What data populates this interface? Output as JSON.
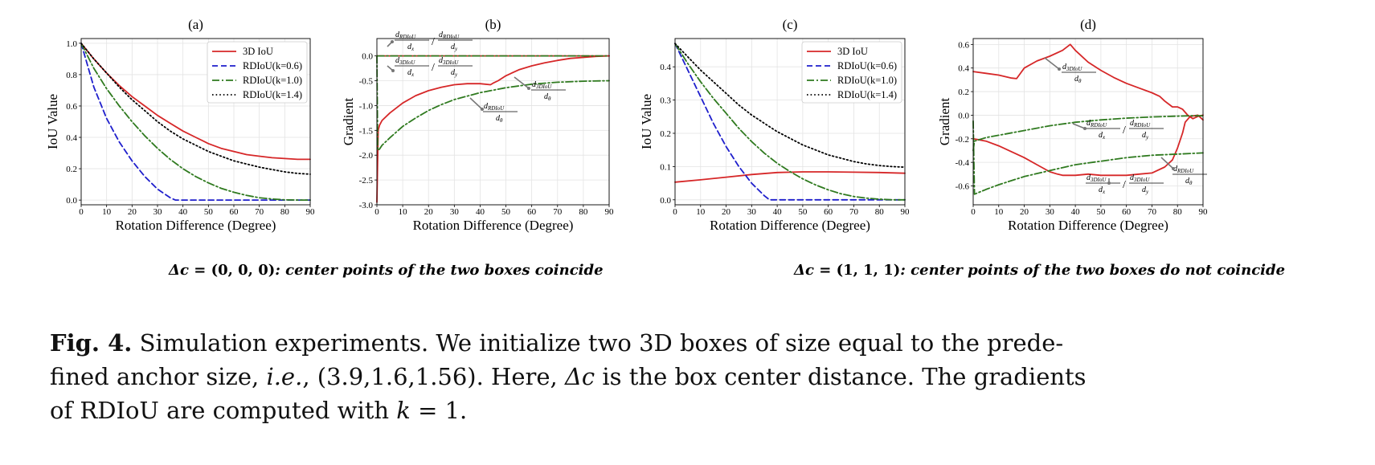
{
  "panels": [
    {
      "id": "a",
      "title": "(a)",
      "chart_data": {
        "type": "line",
        "title": "(a)",
        "xlabel": "Rotation Difference (Degree)",
        "ylabel": "IoU Value",
        "xlim": [
          0,
          90
        ],
        "ylim": [
          -0.03,
          1.03
        ],
        "xticks": [
          "0",
          "10",
          "20",
          "30",
          "40",
          "50",
          "60",
          "70",
          "80",
          "90"
        ],
        "yticks": [
          "0.0",
          "0.2",
          "0.4",
          "0.6",
          "0.8",
          "1.0"
        ],
        "ytick_values": [
          0,
          0.2,
          0.4,
          0.6,
          0.8,
          1.0
        ],
        "grid": true,
        "legend_position": "top-right",
        "series": [
          {
            "name": "3D IoU",
            "color": "#d62728",
            "style": "solid",
            "x": [
              0,
              5,
              10,
              15,
              20,
              25,
              30,
              35,
              40,
              45,
              50,
              55,
              60,
              65,
              70,
              75,
              80,
              85,
              90
            ],
            "y": [
              1.0,
              0.9,
              0.81,
              0.73,
              0.66,
              0.6,
              0.54,
              0.49,
              0.44,
              0.4,
              0.36,
              0.33,
              0.31,
              0.29,
              0.28,
              0.27,
              0.265,
              0.26,
              0.26
            ]
          },
          {
            "name": "RDIoU(k=0.6)",
            "color": "#1f1fcc",
            "style": "dashed",
            "x": [
              0,
              5,
              10,
              15,
              20,
              25,
              30,
              35,
              37,
              40,
              50,
              60,
              70,
              80,
              90
            ],
            "y": [
              1.0,
              0.72,
              0.52,
              0.37,
              0.25,
              0.15,
              0.07,
              0.015,
              0.0,
              0.0,
              0.0,
              0.0,
              0.0,
              0.0,
              0.0
            ]
          },
          {
            "name": "RDIoU(k=1.0)",
            "color": "#2f7a1f",
            "style": "dashdot",
            "x": [
              0,
              5,
              10,
              15,
              20,
              25,
              30,
              35,
              40,
              45,
              50,
              55,
              60,
              65,
              70,
              75,
              80,
              85,
              90
            ],
            "y": [
              1.0,
              0.84,
              0.71,
              0.6,
              0.5,
              0.41,
              0.33,
              0.26,
              0.2,
              0.15,
              0.11,
              0.075,
              0.05,
              0.03,
              0.015,
              0.007,
              0.002,
              0.0,
              0.0
            ]
          },
          {
            "name": "RDIoU(k=1.4)",
            "color": "#000000",
            "style": "dotted",
            "x": [
              0,
              5,
              10,
              15,
              20,
              25,
              30,
              35,
              40,
              45,
              50,
              55,
              60,
              65,
              70,
              75,
              80,
              85,
              90
            ],
            "y": [
              1.0,
              0.9,
              0.81,
              0.72,
              0.64,
              0.57,
              0.5,
              0.44,
              0.39,
              0.35,
              0.31,
              0.28,
              0.25,
              0.23,
              0.21,
              0.195,
              0.18,
              0.17,
              0.165
            ]
          }
        ]
      }
    },
    {
      "id": "b",
      "title": "(b)",
      "chart_data": {
        "type": "line",
        "title": "(b)",
        "xlabel": "Rotation Difference (Degree)",
        "ylabel": "Gradient",
        "xlim": [
          0,
          90
        ],
        "ylim": [
          -3.0,
          0.35
        ],
        "xticks": [
          "0",
          "10",
          "20",
          "30",
          "40",
          "50",
          "60",
          "70",
          "80",
          "90"
        ],
        "yticks": [
          "0.0",
          "-0.5",
          "-1.0",
          "-1.5",
          "-2.0",
          "-2.5",
          "-3.0"
        ],
        "ytick_values": [
          0,
          -0.5,
          -1.0,
          -1.5,
          -2.0,
          -2.5,
          -3.0
        ],
        "grid": true,
        "series": [
          {
            "color": "#d62728",
            "style": "solid",
            "x": [
              0,
              0.5,
              1,
              2,
              5,
              10,
              15,
              20,
              25,
              30,
              35,
              40,
              44,
              45,
              47,
              50,
              55,
              60,
              65,
              70,
              75,
              80,
              85,
              90
            ],
            "y": [
              -2.95,
              -1.5,
              -1.4,
              -1.3,
              -1.15,
              -0.95,
              -0.8,
              -0.7,
              -0.63,
              -0.58,
              -0.56,
              -0.56,
              -0.58,
              -0.55,
              -0.5,
              -0.4,
              -0.28,
              -0.2,
              -0.14,
              -0.09,
              -0.05,
              -0.03,
              -0.01,
              0.0
            ]
          },
          {
            "color": "#2f7a1f",
            "style": "dashdot",
            "x": [
              0,
              0.3,
              1,
              2,
              5,
              10,
              15,
              20,
              25,
              30,
              40,
              50,
              60,
              70,
              80,
              90
            ],
            "y": [
              0.0,
              -1.9,
              -1.88,
              -1.8,
              -1.65,
              -1.42,
              -1.25,
              -1.1,
              -0.98,
              -0.88,
              -0.74,
              -0.64,
              -0.57,
              -0.53,
              -0.51,
              -0.5
            ]
          },
          {
            "color": "#d62728",
            "style": "solid",
            "x": [
              0,
              90
            ],
            "y": [
              0.0,
              0.0
            ]
          },
          {
            "color": "#2f7a1f",
            "style": "dashdot",
            "x": [
              0,
              90
            ],
            "y": [
              0.0,
              0.0
            ]
          }
        ],
        "annotations": [
          {
            "num": "d",
            "sub": "RDIoU",
            "num2": "d",
            "sub2": "RDIoU",
            "den": "d",
            "dsub": "x",
            "den2": "d",
            "dsub2": "y"
          },
          {
            "num": "d",
            "sub": "3DIoU",
            "num2": "d",
            "sub2": "3DIoU",
            "den": "d",
            "dsub": "x",
            "den2": "d",
            "dsub2": "y"
          },
          {
            "num": "d",
            "sub": "3DIoU",
            "den": "d",
            "dsub": "θ"
          },
          {
            "num": "d",
            "sub": "RDIoU",
            "den": "d",
            "dsub": "θ"
          }
        ]
      }
    },
    {
      "id": "c",
      "title": "(c)",
      "chart_data": {
        "type": "line",
        "title": "(c)",
        "xlabel": "Rotation Difference (Degree)",
        "ylabel": "IoU Value",
        "xlim": [
          0,
          90
        ],
        "ylim": [
          -0.015,
          0.485
        ],
        "xticks": [
          "0",
          "10",
          "20",
          "30",
          "40",
          "50",
          "60",
          "70",
          "80",
          "90"
        ],
        "yticks": [
          "0.0",
          "0.1",
          "0.2",
          "0.3",
          "0.4"
        ],
        "ytick_values": [
          0,
          0.1,
          0.2,
          0.3,
          0.4
        ],
        "grid": true,
        "legend_position": "top-right",
        "series": [
          {
            "name": "3D IoU",
            "color": "#d62728",
            "style": "solid",
            "x": [
              0,
              10,
              20,
              30,
              40,
              50,
              60,
              70,
              80,
              90
            ],
            "y": [
              0.053,
              0.06,
              0.068,
              0.076,
              0.082,
              0.084,
              0.084,
              0.083,
              0.082,
              0.08
            ]
          },
          {
            "name": "RDIoU(k=0.6)",
            "color": "#1f1fcc",
            "style": "dashed",
            "x": [
              0,
              5,
              10,
              15,
              20,
              25,
              30,
              35,
              37,
              40,
              50,
              60,
              70,
              80,
              90
            ],
            "y": [
              0.47,
              0.39,
              0.31,
              0.23,
              0.16,
              0.1,
              0.05,
              0.012,
              0.0,
              0.0,
              0.0,
              0.0,
              0.0,
              0.0,
              0.0
            ]
          },
          {
            "name": "RDIoU(k=1.0)",
            "color": "#2f7a1f",
            "style": "dashdot",
            "x": [
              0,
              5,
              10,
              15,
              20,
              25,
              30,
              35,
              40,
              45,
              50,
              55,
              60,
              65,
              70,
              75,
              80,
              85,
              90
            ],
            "y": [
              0.47,
              0.41,
              0.355,
              0.305,
              0.26,
              0.215,
              0.175,
              0.14,
              0.11,
              0.085,
              0.063,
              0.045,
              0.03,
              0.018,
              0.01,
              0.005,
              0.002,
              0.0,
              0.0
            ]
          },
          {
            "name": "RDIoU(k=1.4)",
            "color": "#000000",
            "style": "dotted",
            "x": [
              0,
              5,
              10,
              15,
              20,
              25,
              30,
              35,
              40,
              45,
              50,
              55,
              60,
              65,
              70,
              75,
              80,
              85,
              90
            ],
            "y": [
              0.47,
              0.43,
              0.39,
              0.355,
              0.32,
              0.285,
              0.255,
              0.23,
              0.205,
              0.185,
              0.165,
              0.15,
              0.135,
              0.125,
              0.115,
              0.108,
              0.103,
              0.1,
              0.098
            ]
          }
        ]
      }
    },
    {
      "id": "d",
      "title": "(d)",
      "chart_data": {
        "type": "line",
        "title": "(d)",
        "xlabel": "Rotation Difference (Degree)",
        "ylabel": "Gradient",
        "xlim": [
          0,
          90
        ],
        "ylim": [
          -0.76,
          0.65
        ],
        "xticks": [
          "0",
          "10",
          "20",
          "30",
          "40",
          "50",
          "60",
          "70",
          "80",
          "90"
        ],
        "yticks": [
          "0.6",
          "0.4",
          "0.2",
          "0.0",
          "-0.2",
          "-0.4",
          "-0.6"
        ],
        "ytick_values": [
          0.6,
          0.4,
          0.2,
          0.0,
          -0.2,
          -0.4,
          -0.6
        ],
        "grid": true,
        "series": [
          {
            "color": "#d62728",
            "style": "solid",
            "x": [
              0,
              5,
              10,
              15,
              17,
              20,
              25,
              30,
              35,
              38,
              40,
              45,
              50,
              55,
              60,
              65,
              70,
              73,
              75,
              78,
              80,
              82,
              84,
              86,
              88,
              90
            ],
            "y": [
              0.37,
              0.355,
              0.34,
              0.315,
              0.31,
              0.4,
              0.46,
              0.5,
              0.55,
              0.6,
              0.55,
              0.45,
              0.38,
              0.32,
              0.27,
              0.23,
              0.19,
              0.16,
              0.12,
              0.07,
              0.07,
              0.05,
              0.0,
              -0.03,
              -0.01,
              0.0
            ]
          },
          {
            "color": "#d62728",
            "style": "solid",
            "x": [
              0,
              5,
              10,
              15,
              20,
              25,
              30,
              33,
              35,
              40,
              45,
              50,
              55,
              60,
              65,
              70,
              75,
              78,
              80,
              82,
              83,
              85,
              88,
              90
            ],
            "y": [
              -0.2,
              -0.22,
              -0.26,
              -0.31,
              -0.36,
              -0.42,
              -0.48,
              -0.5,
              -0.51,
              -0.51,
              -0.5,
              -0.51,
              -0.51,
              -0.51,
              -0.5,
              -0.49,
              -0.44,
              -0.38,
              -0.28,
              -0.15,
              -0.06,
              -0.01,
              0.0,
              -0.04
            ]
          },
          {
            "color": "#2f7a1f",
            "style": "dashdot",
            "x": [
              0,
              0.5,
              5,
              10,
              20,
              30,
              40,
              50,
              60,
              70,
              80,
              85,
              90
            ],
            "y": [
              -0.3,
              -0.22,
              -0.19,
              -0.17,
              -0.13,
              -0.09,
              -0.06,
              -0.04,
              -0.025,
              -0.015,
              -0.008,
              -0.005,
              -0.005
            ]
          },
          {
            "color": "#2f7a1f",
            "style": "dashdot",
            "x": [
              0,
              0.5,
              5,
              10,
              20,
              30,
              40,
              50,
              60,
              70,
              80,
              90
            ],
            "y": [
              -0.05,
              -0.67,
              -0.63,
              -0.59,
              -0.52,
              -0.47,
              -0.42,
              -0.39,
              -0.36,
              -0.34,
              -0.33,
              -0.32
            ]
          }
        ],
        "annotations": [
          {
            "num": "d",
            "sub": "3DIoU",
            "den": "d",
            "dsub": "θ"
          },
          {
            "num": "d",
            "sub": "RDIoU",
            "num2": "d",
            "sub2": "RDIoU",
            "den": "d",
            "dsub": "x",
            "den2": "d",
            "dsub2": "y"
          },
          {
            "num": "d",
            "sub": "RDIoU",
            "den": "d",
            "dsub": "θ"
          },
          {
            "num": "d",
            "sub": "3DIoU",
            "num2": "d",
            "sub2": "3DIoU",
            "den": "d",
            "dsub": "x",
            "den2": "d",
            "dsub2": "y"
          }
        ]
      }
    }
  ],
  "conditions": [
    {
      "delta": "Δc",
      "eq": " = ",
      "vec": "(0, 0, 0)",
      "desc": ": center points of the two boxes coincide"
    },
    {
      "delta": "Δc",
      "eq": " = ",
      "vec": "(1, 1, 1)",
      "desc": ": center points of the two boxes do not coincide"
    }
  ],
  "caption": {
    "label": "Fig. 4.",
    "text1": " Simulation experiments. We initialize two 3D boxes of size equal to the prede-",
    "text2a": "fined anchor size, ",
    "text2b": "i.e.",
    "text2c": ", (3.9,1.6,1.56). Here, ",
    "text2d": "Δc",
    "text2e": " is the box center distance. The gradients",
    "text3a": "of RDIoU are computed with ",
    "text3b": "k",
    "text3c": " = 1."
  }
}
